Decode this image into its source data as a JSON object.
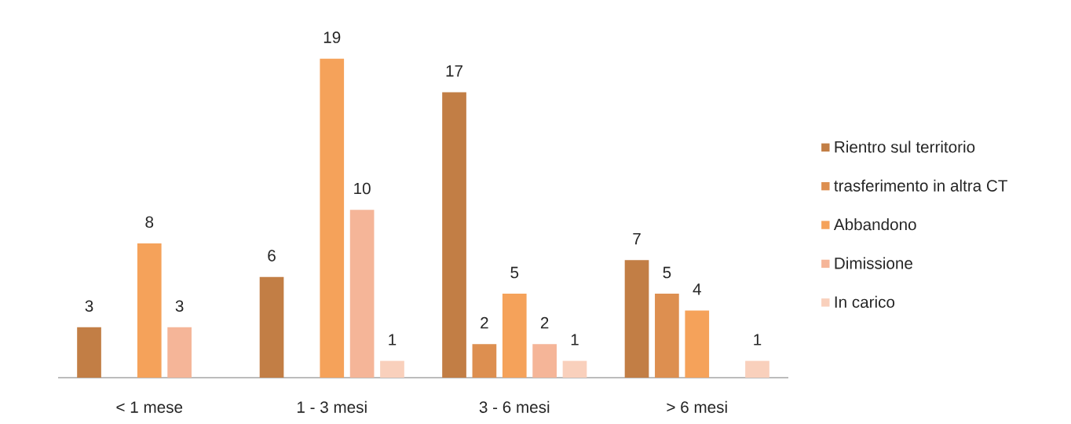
{
  "chart_data": {
    "type": "bar",
    "categories": [
      "< 1 mese",
      "1 - 3 mesi",
      "3 - 6 mesi",
      "> 6 mesi"
    ],
    "series": [
      {
        "name": "Rientro sul territorio",
        "color": "#c27e45",
        "values": [
          3,
          6,
          17,
          7
        ]
      },
      {
        "name": "trasferimento in altra CT",
        "color": "#dd8f50",
        "values": [
          null,
          null,
          2,
          5
        ]
      },
      {
        "name": "Abbandono",
        "color": "#f5a25a",
        "values": [
          8,
          19,
          5,
          4
        ]
      },
      {
        "name": "Dimissione",
        "color": "#f5b598",
        "values": [
          3,
          10,
          2,
          null
        ]
      },
      {
        "name": "In carico",
        "color": "#f9d0bc",
        "values": [
          null,
          1,
          1,
          1
        ]
      }
    ],
    "data_labels": true,
    "legend": "right"
  }
}
